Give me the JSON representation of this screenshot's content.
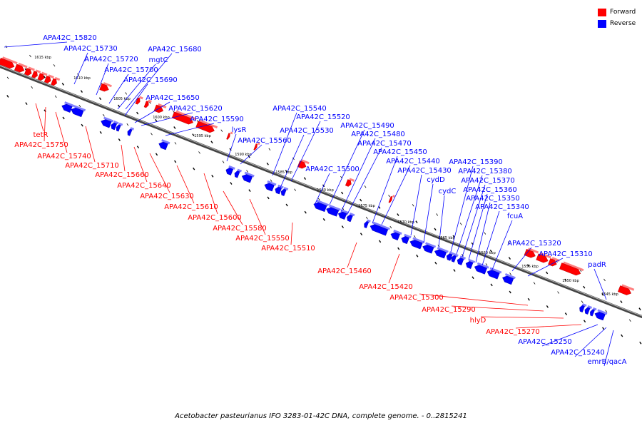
{
  "legend": {
    "forward_label": "Forward",
    "reverse_label": "Reverse",
    "forward_color": "#ff0000",
    "reverse_color": "#0000ff"
  },
  "caption": "Acetobacter pasteurianus IFO 3283-01-42C DNA, complete genome. - 0..2815241",
  "tick_labels": [
    "1615 kbp",
    "1610 kbp",
    "1605 kbp",
    "1600 kbp",
    "1595 kbp",
    "1590 kbp",
    "1585 kbp",
    "1580 kbp",
    "1575 kbp",
    "1570 kbp",
    "1565 kbp",
    "1560 kbp",
    "1555 kbp",
    "1550 kbp",
    "1545 kbp"
  ],
  "reverse_genes": [
    "APA42C_15820",
    "APA42C_15730",
    "APA42C_15720",
    "APA42C_15680",
    "mgtC",
    "APA42C_15700",
    "APA42C_15690",
    "APA42C_15650",
    "APA42C_15620",
    "APA42C_15590",
    "lysR",
    "APA42C_15560",
    "APA42C_15540",
    "APA42C_15520",
    "APA42C_15530",
    "APA42C_15500",
    "APA42C_15490",
    "APA42C_15480",
    "APA42C_15470",
    "APA42C_15450",
    "APA42C_15440",
    "APA42C_15430",
    "cydD",
    "cydC",
    "APA42C_15390",
    "APA42C_15380",
    "APA42C_15370",
    "APA42C_15360",
    "APA42C_15350",
    "APA42C_15340",
    "fcuA",
    "APA42C_15320",
    "APA42C_15310",
    "padR",
    "APA42C_15250",
    "APA42C_15240",
    "emrB/qacA"
  ],
  "forward_genes": [
    "tetR",
    "APA42C_15750",
    "APA42C_15740",
    "APA42C_15710",
    "APA42C_15660",
    "APA42C_15640",
    "APA42C_15630",
    "APA42C_15610",
    "APA42C_15600",
    "APA42C_15580",
    "APA42C_15550",
    "APA42C_15510",
    "APA42C_15460",
    "APA42C_15420",
    "APA42C_15300",
    "APA42C_15290",
    "hlyD",
    "APA42C_15270"
  ]
}
